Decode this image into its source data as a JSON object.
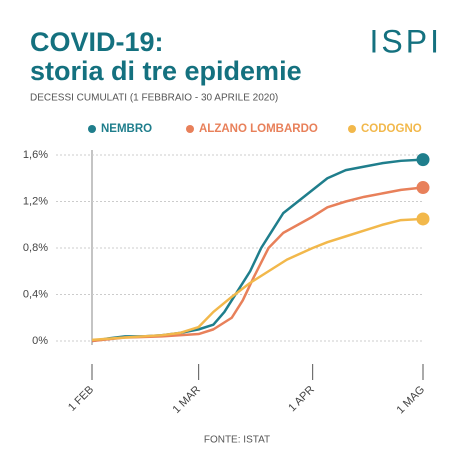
{
  "chart_data": {
    "type": "line",
    "title": [
      "COVID-19:",
      "storia di tre epidemie"
    ],
    "subtitle": "DECESSI CUMULATI (1 FEBBRAIO - 30 APRILE 2020)",
    "logo": "ISPI",
    "source": "FONTE: ISTAT",
    "ylim": [
      0,
      1.6
    ],
    "yticks": [
      {
        "value": 0,
        "label": "0%"
      },
      {
        "value": 0.4,
        "label": "0,4%"
      },
      {
        "value": 0.8,
        "label": "0,8%"
      },
      {
        "value": 1.2,
        "label": "1,2%"
      },
      {
        "value": 1.6,
        "label": "1,6%"
      }
    ],
    "xlim": [
      "02-01",
      "05-01"
    ],
    "xticks": [
      {
        "value": "02-01",
        "label": "1 FEB"
      },
      {
        "value": "03-01",
        "label": "1 MAR"
      },
      {
        "value": "04-01",
        "label": "1 APR"
      },
      {
        "value": "05-01",
        "label": "1 MAG"
      }
    ],
    "grid": true,
    "series": [
      {
        "name": "NEMBRO",
        "color": "#1f7e8c",
        "x": [
          "02-01",
          "02-05",
          "02-10",
          "02-15",
          "02-20",
          "02-25",
          "03-01",
          "03-05",
          "03-08",
          "03-12",
          "03-15",
          "03-18",
          "03-21",
          "03-24",
          "03-28",
          "04-01",
          "04-05",
          "04-10",
          "04-15",
          "04-20",
          "04-25",
          "05-01"
        ],
        "values": [
          0,
          0.02,
          0.04,
          0.04,
          0.05,
          0.07,
          0.1,
          0.14,
          0.25,
          0.45,
          0.6,
          0.8,
          0.95,
          1.1,
          1.2,
          1.3,
          1.4,
          1.47,
          1.5,
          1.53,
          1.55,
          1.56
        ]
      },
      {
        "name": "ALZANO LOMBARDO",
        "color": "#e8805a",
        "x": [
          "02-01",
          "02-10",
          "02-20",
          "03-01",
          "03-05",
          "03-10",
          "03-13",
          "03-16",
          "03-20",
          "03-24",
          "03-28",
          "04-01",
          "04-05",
          "04-10",
          "04-15",
          "04-20",
          "04-25",
          "05-01"
        ],
        "values": [
          0,
          0.03,
          0.04,
          0.06,
          0.1,
          0.2,
          0.35,
          0.55,
          0.8,
          0.93,
          1.0,
          1.07,
          1.15,
          1.2,
          1.24,
          1.27,
          1.3,
          1.32
        ]
      },
      {
        "name": "CODOGNO",
        "color": "#f2b84b",
        "x": [
          "02-01",
          "02-10",
          "02-20",
          "02-25",
          "03-01",
          "03-05",
          "03-10",
          "03-15",
          "03-20",
          "03-25",
          "04-01",
          "04-05",
          "04-10",
          "04-15",
          "04-20",
          "04-25",
          "05-01"
        ],
        "values": [
          0.01,
          0.03,
          0.05,
          0.07,
          0.12,
          0.25,
          0.38,
          0.5,
          0.6,
          0.7,
          0.8,
          0.85,
          0.9,
          0.95,
          1.0,
          1.04,
          1.05
        ]
      }
    ]
  }
}
